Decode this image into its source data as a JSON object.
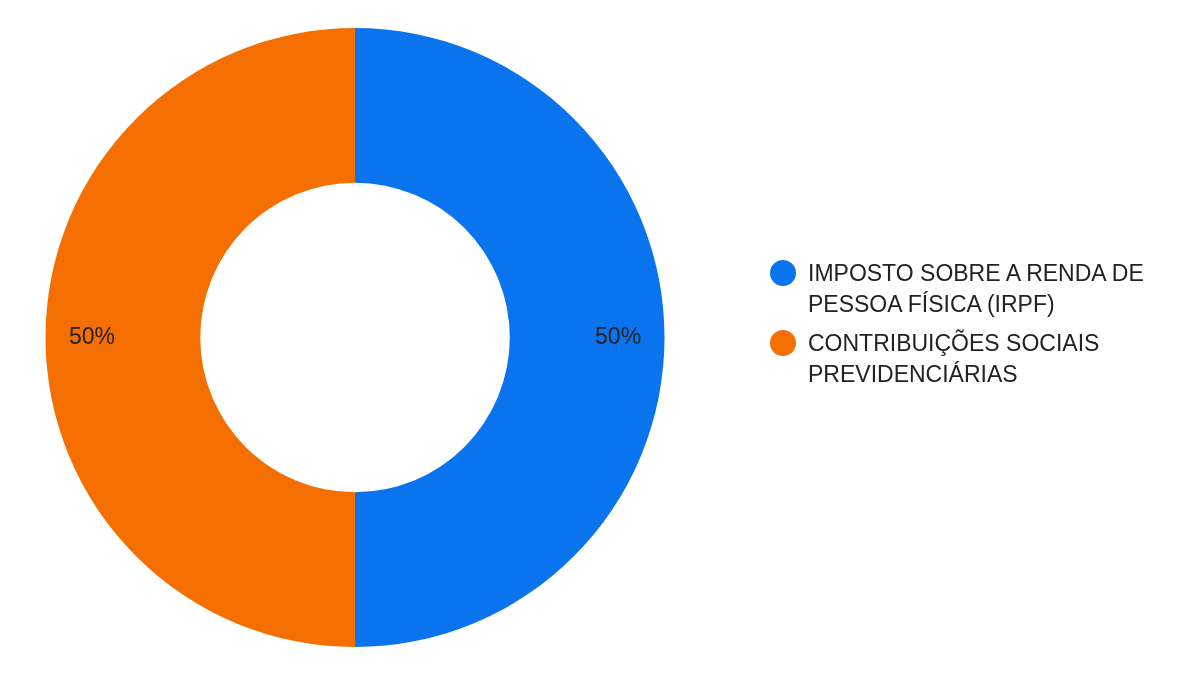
{
  "chart_data": {
    "type": "donut",
    "categories": [
      "IMPOSTO SOBRE A RENDA DE PESSOA FÍSICA (IRPF)",
      "CONTRIBUIÇÕES SOCIAIS PREVIDENCIÁRIAS"
    ],
    "values": [
      50,
      50
    ],
    "colors": [
      "#0a74ee",
      "#f56f00"
    ],
    "value_labels": [
      "50%",
      "50%"
    ],
    "legend": "right"
  }
}
